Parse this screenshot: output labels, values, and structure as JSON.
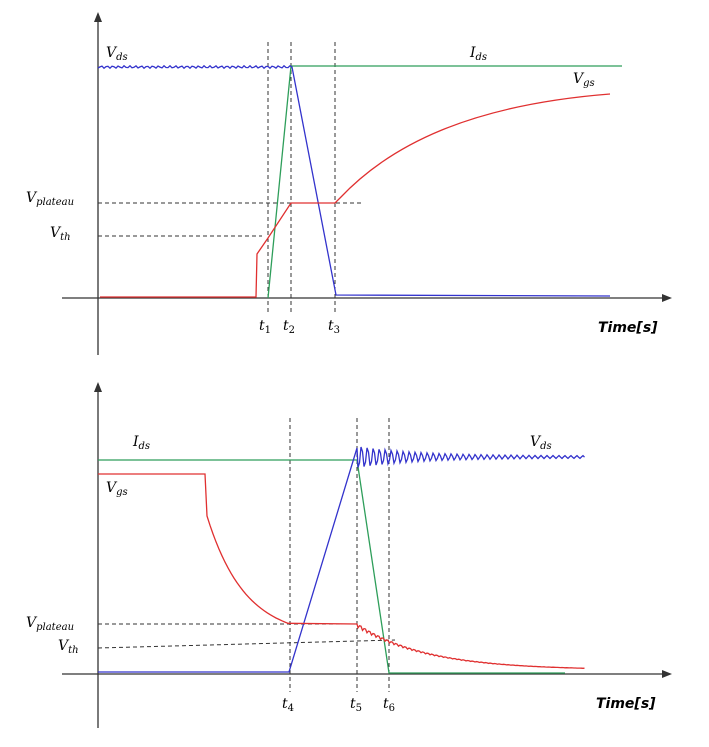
{
  "colors": {
    "vds": "#3333cc",
    "ids": "#2e9e5a",
    "vgs": "#e03030",
    "axis": "#333333"
  },
  "turn_on": {
    "labels": {
      "vds": {
        "main": "V",
        "sub": "ds"
      },
      "ids": {
        "main": "I",
        "sub": "ds"
      },
      "vgs": {
        "main": "V",
        "sub": "gs"
      },
      "vplateau": {
        "main": "V",
        "sub": "plateau"
      },
      "vth": {
        "main": "V",
        "sub": "th"
      },
      "t1": {
        "main": "t",
        "sub": "1"
      },
      "t2": {
        "main": "t",
        "sub": "2"
      },
      "t3": {
        "main": "t",
        "sub": "3"
      },
      "xaxis": "Time[s]"
    }
  },
  "turn_off": {
    "labels": {
      "ids": {
        "main": "I",
        "sub": "ds"
      },
      "vds": {
        "main": "V",
        "sub": "ds"
      },
      "vgs": {
        "main": "V",
        "sub": "gs"
      },
      "vplateau": {
        "main": "V",
        "sub": "plateau"
      },
      "vth": {
        "main": "V",
        "sub": "th"
      },
      "t4": {
        "main": "t",
        "sub": "4"
      },
      "t5": {
        "main": "t",
        "sub": "5"
      },
      "t6": {
        "main": "t",
        "sub": "6"
      },
      "xaxis": "Time[s]"
    }
  }
}
